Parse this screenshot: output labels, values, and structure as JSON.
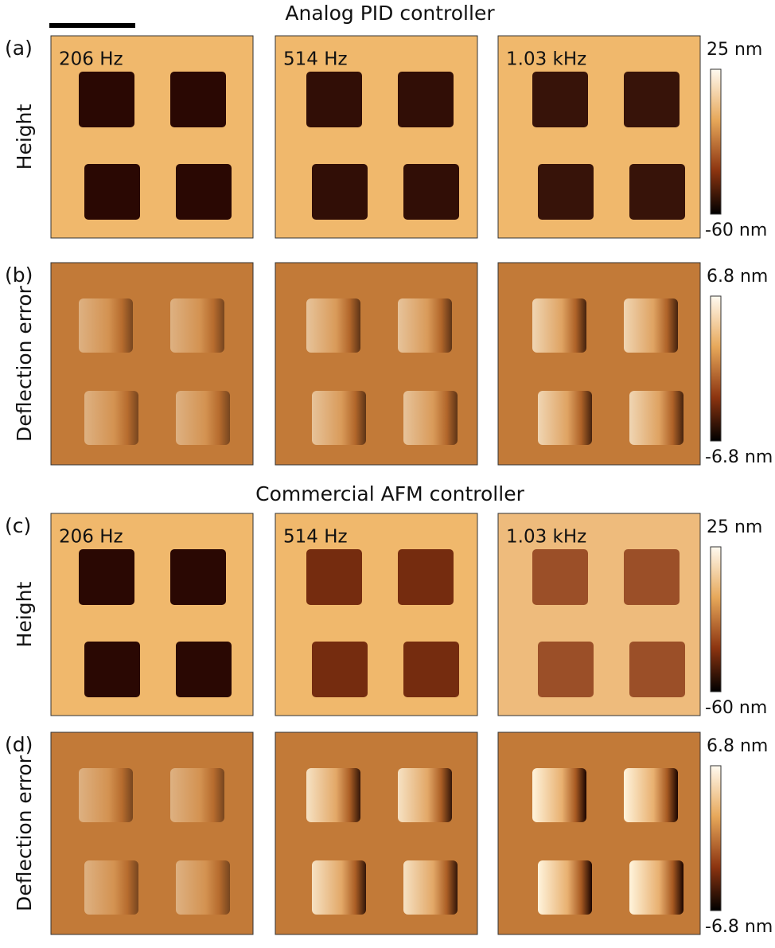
{
  "sections": [
    {
      "title": "Analog PID controller",
      "rows": [
        {
          "panel": "(a)",
          "label": "Height",
          "frequencies": [
            "206 Hz",
            "514 Hz",
            "1.03 kHz"
          ],
          "colorbar": {
            "max": "25 nm",
            "min": "-60 nm"
          }
        },
        {
          "panel": "(b)",
          "label": "Deflection error",
          "colorbar": {
            "max": "6.8 nm",
            "min": "-6.8 nm"
          }
        }
      ]
    },
    {
      "title": "Commercial AFM controller",
      "rows": [
        {
          "panel": "(c)",
          "label": "Height",
          "frequencies": [
            "206 Hz",
            "514 Hz",
            "1.03 kHz"
          ],
          "colorbar": {
            "max": "25 nm",
            "min": "-60 nm"
          }
        },
        {
          "panel": "(d)",
          "label": "Deflection error",
          "colorbar": {
            "max": "6.8 nm",
            "min": "-6.8 nm"
          }
        }
      ]
    }
  ]
}
